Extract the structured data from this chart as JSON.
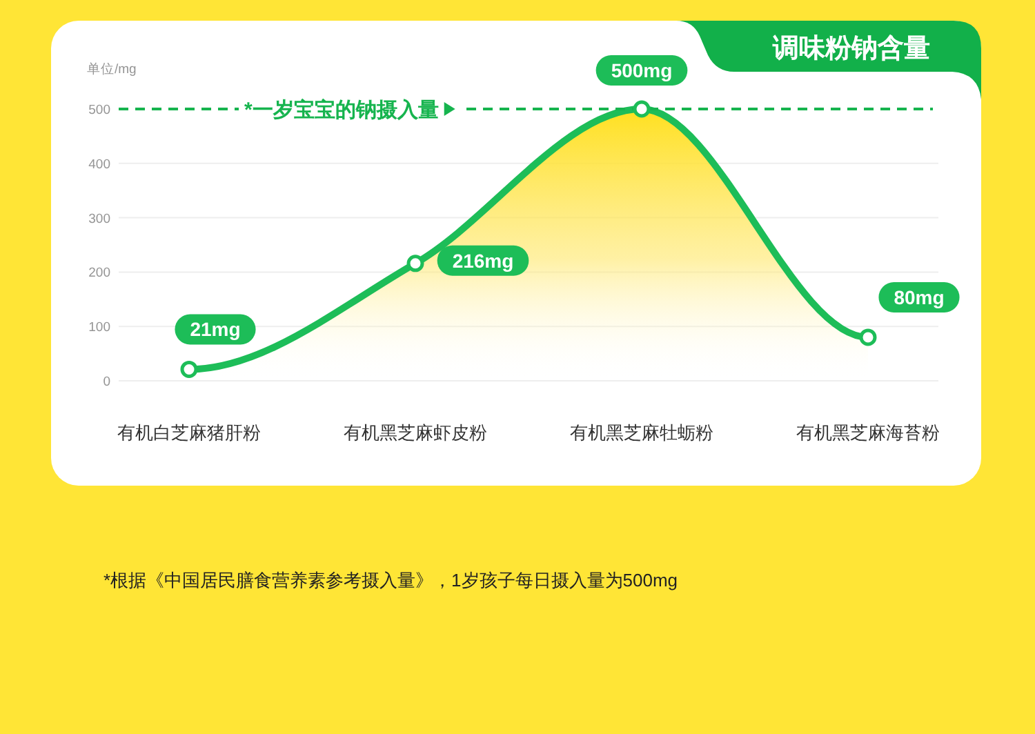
{
  "chart_data": {
    "type": "area",
    "title": "调味粉钠含量",
    "ylabel": "单位/mg",
    "categories": [
      "有机白芝麻猪肝粉",
      "有机黑芝麻虾皮粉",
      "有机黑芝麻牡蛎粉",
      "有机黑芝麻海苔粉"
    ],
    "series": [
      {
        "color": "#1dbd58",
        "values": [
          21,
          216,
          500,
          80
        ],
        "value_labels": [
          "21mg",
          "216mg",
          "500mg",
          "80mg"
        ]
      }
    ],
    "ylim": [
      0,
      500
    ],
    "yticks": [
      0,
      100,
      200,
      300,
      400,
      500
    ],
    "ref_lines": [
      {
        "axis": "y",
        "value": 500,
        "label": "*一岁宝宝的钠摄入量",
        "color": "#16b44e",
        "line_style": "dashed"
      }
    ],
    "annotations": [
      "*根据《中国居民膳食营养素参考摄入量》，1岁孩子每日摄入量为500mg"
    ],
    "grid": "y",
    "marker": "circle"
  }
}
